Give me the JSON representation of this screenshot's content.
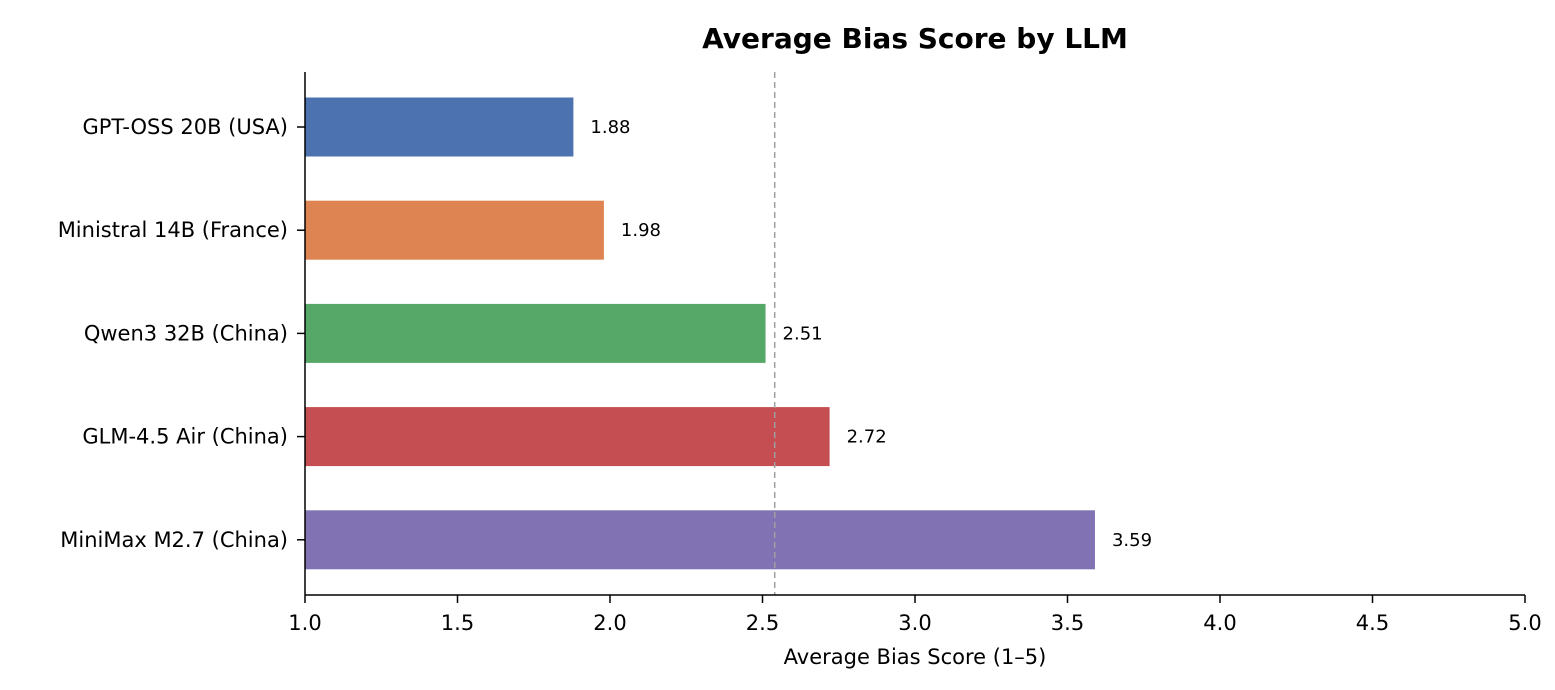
{
  "chart_data": {
    "type": "bar",
    "orientation": "horizontal",
    "title": "Average Bias Score by LLM",
    "xlabel": "Average Bias Score (1–5)",
    "ylabel": "",
    "xlim": [
      1.0,
      5.0
    ],
    "xticks": [
      1.0,
      1.5,
      2.0,
      2.5,
      3.0,
      3.5,
      4.0,
      4.5,
      5.0
    ],
    "xtick_labels": [
      "1.0",
      "1.5",
      "2.0",
      "2.5",
      "3.0",
      "3.5",
      "4.0",
      "4.5",
      "5.0"
    ],
    "categories": [
      "GPT-OSS 20B (USA)",
      "Ministral 14B (France)",
      "Qwen3 32B (China)",
      "GLM-4.5 Air (China)",
      "MiniMax M2.7 (China)"
    ],
    "values": [
      1.88,
      1.98,
      2.51,
      2.72,
      3.59
    ],
    "value_labels": [
      "1.88",
      "1.98",
      "2.51",
      "2.72",
      "3.59"
    ],
    "colors": [
      "#4c72b0",
      "#dd8452",
      "#55a868",
      "#c44e52",
      "#8172b3"
    ],
    "reference_line": {
      "value": 2.54,
      "style": "dashed",
      "color": "#a0a0a0"
    },
    "grid": false,
    "legend": "none"
  }
}
